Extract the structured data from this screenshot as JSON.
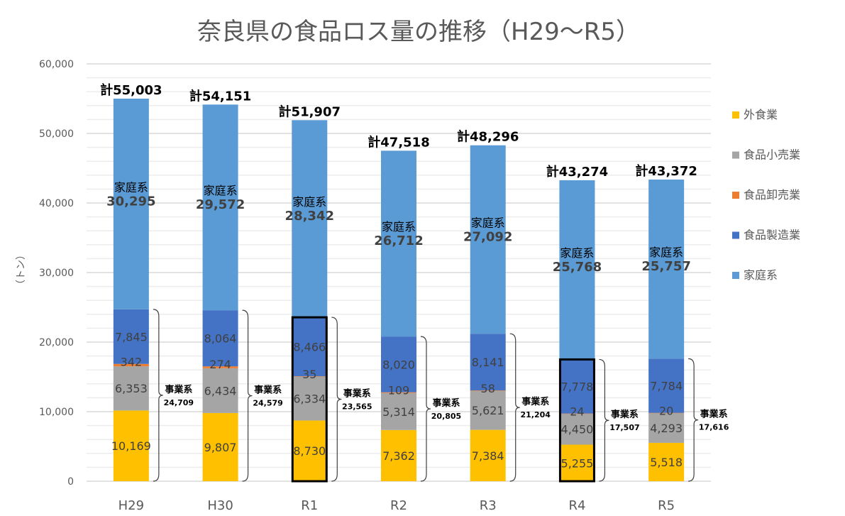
{
  "chart_data": {
    "type": "bar",
    "stacked": true,
    "title": "奈良県の食品ロス量の推移（H29〜R5）",
    "ylabel": "（トン）",
    "xlabel": "",
    "ylim": [
      0,
      60000
    ],
    "yticks": [
      "0",
      "10,000",
      "20,000",
      "30,000",
      "40,000",
      "50,000",
      "60,000"
    ],
    "ytick_values": [
      0,
      10000,
      20000,
      30000,
      40000,
      50000,
      60000
    ],
    "grid": true,
    "legend_position": "right",
    "categories": [
      "H29",
      "H30",
      "R1",
      "R2",
      "R3",
      "R4",
      "R5"
    ],
    "series": [
      {
        "name": "外食業",
        "color": "#FFC000",
        "values": [
          10169,
          9807,
          8730,
          7362,
          7384,
          5255,
          5518
        ],
        "labels": [
          "10,169",
          "9,807",
          "8,730",
          "7,362",
          "7,384",
          "5,255",
          "5,518"
        ]
      },
      {
        "name": "食品小売業",
        "color": "#A5A5A5",
        "values": [
          6353,
          6434,
          6334,
          5314,
          5621,
          4450,
          4293
        ],
        "labels": [
          "6,353",
          "6,434",
          "6,334",
          "5,314",
          "5,621",
          "4,450",
          "4,293"
        ]
      },
      {
        "name": "食品卸売業",
        "color": "#ED7D31",
        "values": [
          342,
          274,
          35,
          109,
          58,
          24,
          20
        ],
        "labels": [
          "342",
          "274",
          "35",
          "109",
          "58",
          "24",
          "20"
        ]
      },
      {
        "name": "食品製造業",
        "color": "#4472C4",
        "values": [
          7845,
          8064,
          8466,
          8020,
          8141,
          7778,
          7784
        ],
        "labels": [
          "7,845",
          "8,064",
          "8,466",
          "8,020",
          "8,141",
          "7,778",
          "7,784"
        ]
      },
      {
        "name": "家庭系",
        "color": "#5B9BD5",
        "values": [
          30295,
          29572,
          28342,
          26712,
          27092,
          25768,
          25757
        ],
        "labels": [
          "30,295",
          "29,572",
          "28,342",
          "26,712",
          "27,092",
          "25,768",
          "25,757"
        ]
      }
    ],
    "household_label": "家庭系",
    "business_label": "事業系",
    "business_totals": [
      "24,709",
      "24,579",
      "23,565",
      "20,805",
      "21,204",
      "17,507",
      "17,616"
    ],
    "total_prefix": "計",
    "totals": [
      "55,003",
      "54,151",
      "51,907",
      "47,518",
      "48,296",
      "43,274",
      "43,372"
    ],
    "highlighted_categories": [
      "R1",
      "R4"
    ]
  }
}
